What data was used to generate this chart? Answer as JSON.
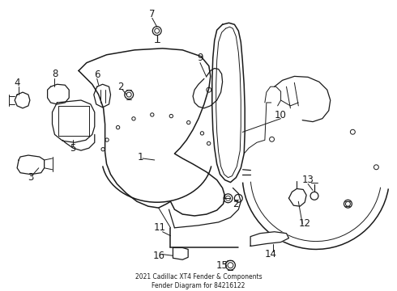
{
  "title": "2021 Cadillac XT4 Fender & Components\nFender Diagram for 84216122",
  "bg_color": "#ffffff",
  "line_color": "#1a1a1a",
  "fig_width": 4.9,
  "fig_height": 3.6,
  "dpi": 100,
  "label_fontsize": 8.5
}
